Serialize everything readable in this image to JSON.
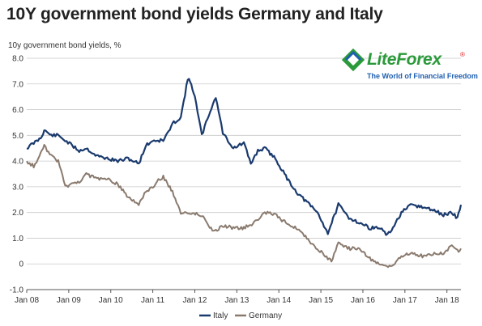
{
  "chart_data": {
    "type": "line",
    "title": "10Y government bond yields Germany and Italy",
    "ylabel": "10y government bond yields, %",
    "xlabel": "",
    "x_ticks": [
      "Jan 08",
      "Jan 09",
      "Jan 10",
      "Jan 11",
      "Jan 12",
      "Jan 13",
      "Jan 14",
      "Jan 15",
      "Jan 16",
      "Jan 17",
      "Jan 18"
    ],
    "y_ticks": [
      "-1.0",
      "0",
      "1.0",
      "2.0",
      "3.0",
      "4.0",
      "5.0",
      "6.0",
      "7.0",
      "8.0"
    ],
    "xlim": [
      "2008-01",
      "2018-05"
    ],
    "ylim": [
      -1.0,
      8.0
    ],
    "grid": true,
    "legend_position": "bottom",
    "series": [
      {
        "name": "Italy",
        "color": "#1a3a6e",
        "points": [
          [
            "2008-01",
            4.5
          ],
          [
            "2008-03",
            4.7
          ],
          [
            "2008-05",
            4.9
          ],
          [
            "2008-06",
            5.2
          ],
          [
            "2008-08",
            5.0
          ],
          [
            "2008-10",
            5.0
          ],
          [
            "2008-12",
            4.8
          ],
          [
            "2009-02",
            4.6
          ],
          [
            "2009-04",
            4.4
          ],
          [
            "2009-06",
            4.5
          ],
          [
            "2009-09",
            4.2
          ],
          [
            "2009-12",
            4.1
          ],
          [
            "2010-03",
            4.0
          ],
          [
            "2010-06",
            4.1
          ],
          [
            "2010-09",
            3.9
          ],
          [
            "2010-11",
            4.6
          ],
          [
            "2011-01",
            4.8
          ],
          [
            "2011-04",
            4.8
          ],
          [
            "2011-07",
            5.5
          ],
          [
            "2011-09",
            5.7
          ],
          [
            "2011-11",
            7.2
          ],
          [
            "2011-12",
            7.0
          ],
          [
            "2012-01",
            6.5
          ],
          [
            "2012-03",
            5.0
          ],
          [
            "2012-05",
            5.8
          ],
          [
            "2012-07",
            6.5
          ],
          [
            "2012-09",
            5.1
          ],
          [
            "2012-12",
            4.5
          ],
          [
            "2013-03",
            4.7
          ],
          [
            "2013-05",
            3.9
          ],
          [
            "2013-07",
            4.4
          ],
          [
            "2013-09",
            4.5
          ],
          [
            "2013-12",
            4.1
          ],
          [
            "2014-03",
            3.4
          ],
          [
            "2014-06",
            2.8
          ],
          [
            "2014-09",
            2.4
          ],
          [
            "2014-12",
            2.0
          ],
          [
            "2015-03",
            1.2
          ],
          [
            "2015-06",
            2.3
          ],
          [
            "2015-09",
            1.8
          ],
          [
            "2015-12",
            1.6
          ],
          [
            "2016-03",
            1.4
          ],
          [
            "2016-06",
            1.4
          ],
          [
            "2016-08",
            1.1
          ],
          [
            "2016-10",
            1.5
          ],
          [
            "2016-12",
            2.0
          ],
          [
            "2017-03",
            2.3
          ],
          [
            "2017-06",
            2.2
          ],
          [
            "2017-09",
            2.1
          ],
          [
            "2017-12",
            1.9
          ],
          [
            "2018-02",
            2.0
          ],
          [
            "2018-04",
            1.8
          ],
          [
            "2018-05",
            2.3
          ]
        ]
      },
      {
        "name": "Germany",
        "color": "#8a7a6e",
        "points": [
          [
            "2008-01",
            4.0
          ],
          [
            "2008-03",
            3.8
          ],
          [
            "2008-05",
            4.3
          ],
          [
            "2008-06",
            4.6
          ],
          [
            "2008-08",
            4.2
          ],
          [
            "2008-10",
            4.0
          ],
          [
            "2008-12",
            3.0
          ],
          [
            "2009-02",
            3.1
          ],
          [
            "2009-04",
            3.2
          ],
          [
            "2009-06",
            3.5
          ],
          [
            "2009-09",
            3.3
          ],
          [
            "2009-12",
            3.3
          ],
          [
            "2010-03",
            3.1
          ],
          [
            "2010-06",
            2.6
          ],
          [
            "2010-09",
            2.3
          ],
          [
            "2010-11",
            2.8
          ],
          [
            "2011-01",
            3.0
          ],
          [
            "2011-03",
            3.3
          ],
          [
            "2011-04",
            3.4
          ],
          [
            "2011-07",
            2.7
          ],
          [
            "2011-09",
            2.0
          ],
          [
            "2011-12",
            2.0
          ],
          [
            "2012-03",
            1.9
          ],
          [
            "2012-06",
            1.3
          ],
          [
            "2012-07",
            1.3
          ],
          [
            "2012-09",
            1.5
          ],
          [
            "2012-12",
            1.4
          ],
          [
            "2013-03",
            1.4
          ],
          [
            "2013-06",
            1.6
          ],
          [
            "2013-09",
            2.0
          ],
          [
            "2013-12",
            1.9
          ],
          [
            "2014-03",
            1.6
          ],
          [
            "2014-06",
            1.4
          ],
          [
            "2014-09",
            1.0
          ],
          [
            "2014-12",
            0.6
          ],
          [
            "2015-03",
            0.2
          ],
          [
            "2015-04",
            0.1
          ],
          [
            "2015-06",
            0.8
          ],
          [
            "2015-09",
            0.6
          ],
          [
            "2015-12",
            0.6
          ],
          [
            "2016-03",
            0.2
          ],
          [
            "2016-06",
            0.0
          ],
          [
            "2016-07",
            -0.1
          ],
          [
            "2016-09",
            -0.1
          ],
          [
            "2016-12",
            0.3
          ],
          [
            "2017-03",
            0.4
          ],
          [
            "2017-06",
            0.3
          ],
          [
            "2017-09",
            0.4
          ],
          [
            "2017-12",
            0.4
          ],
          [
            "2018-02",
            0.7
          ],
          [
            "2018-04",
            0.5
          ],
          [
            "2018-05",
            0.6
          ]
        ]
      }
    ]
  },
  "brand": {
    "name": "LiteForex",
    "registered": "®",
    "tagline": "The World of Financial Freedom",
    "colors": {
      "green": "#2a9a3a",
      "blue": "#1f5fb0"
    },
    "icon": "liteforex-diamond-logo"
  }
}
